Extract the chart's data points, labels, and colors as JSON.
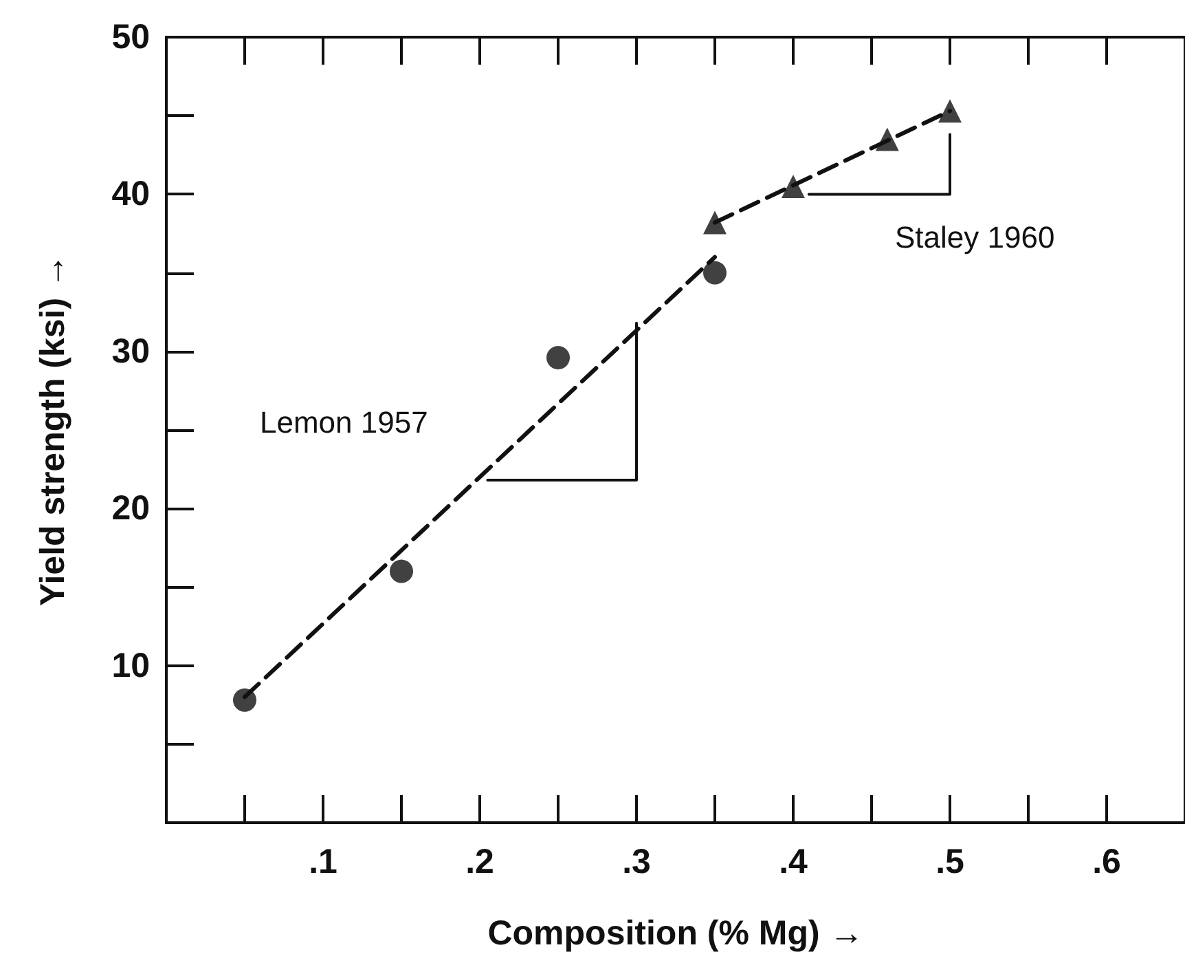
{
  "chart_data": {
    "type": "scatter",
    "xlabel": "Composition (% Mg) →",
    "ylabel": "Yield strength (ksi) →",
    "xlim": [
      0,
      0.65
    ],
    "ylim": [
      0,
      50
    ],
    "xticks": [
      {
        "value": 0.1,
        "label": ".1"
      },
      {
        "value": 0.2,
        "label": ".2"
      },
      {
        "value": 0.3,
        "label": ".3"
      },
      {
        "value": 0.4,
        "label": ".4"
      },
      {
        "value": 0.5,
        "label": ".5"
      },
      {
        "value": 0.6,
        "label": ".6"
      }
    ],
    "yticks": [
      10,
      20,
      30,
      40,
      50
    ],
    "grid": false,
    "series": [
      {
        "marker": "circle",
        "color": "#111111",
        "x": [
          0.05,
          0.15,
          0.25,
          0.35
        ],
        "values": [
          7.8,
          16,
          29.6,
          35
        ]
      },
      {
        "marker": "triangle",
        "color": "#111111",
        "x": [
          0.35,
          0.4,
          0.46,
          0.5
        ],
        "values": [
          38.2,
          40.5,
          43.5,
          45.3
        ]
      },
      {
        "type": "line",
        "marker": "none",
        "line_style": "dashed",
        "color": "#111111",
        "x": [
          0.05,
          0.35
        ],
        "values": [
          8,
          36
        ]
      },
      {
        "type": "line",
        "marker": "none",
        "line_style": "dashed",
        "color": "#111111",
        "x": [
          0.35,
          0.5
        ],
        "values": [
          38.2,
          45.3
        ]
      },
      {
        "type": "line",
        "marker": "none",
        "line_style": "solid",
        "color": "#111111",
        "x": [
          0.205,
          0.3,
          0.3
        ],
        "values": [
          21.8,
          21.8,
          31.8
        ]
      },
      {
        "type": "line",
        "marker": "none",
        "line_style": "solid",
        "color": "#111111",
        "x": [
          0.41,
          0.5,
          0.5
        ],
        "values": [
          40,
          40,
          43.8
        ]
      }
    ],
    "annotations": [
      "Lemon 1957",
      "Staley 1960"
    ]
  }
}
